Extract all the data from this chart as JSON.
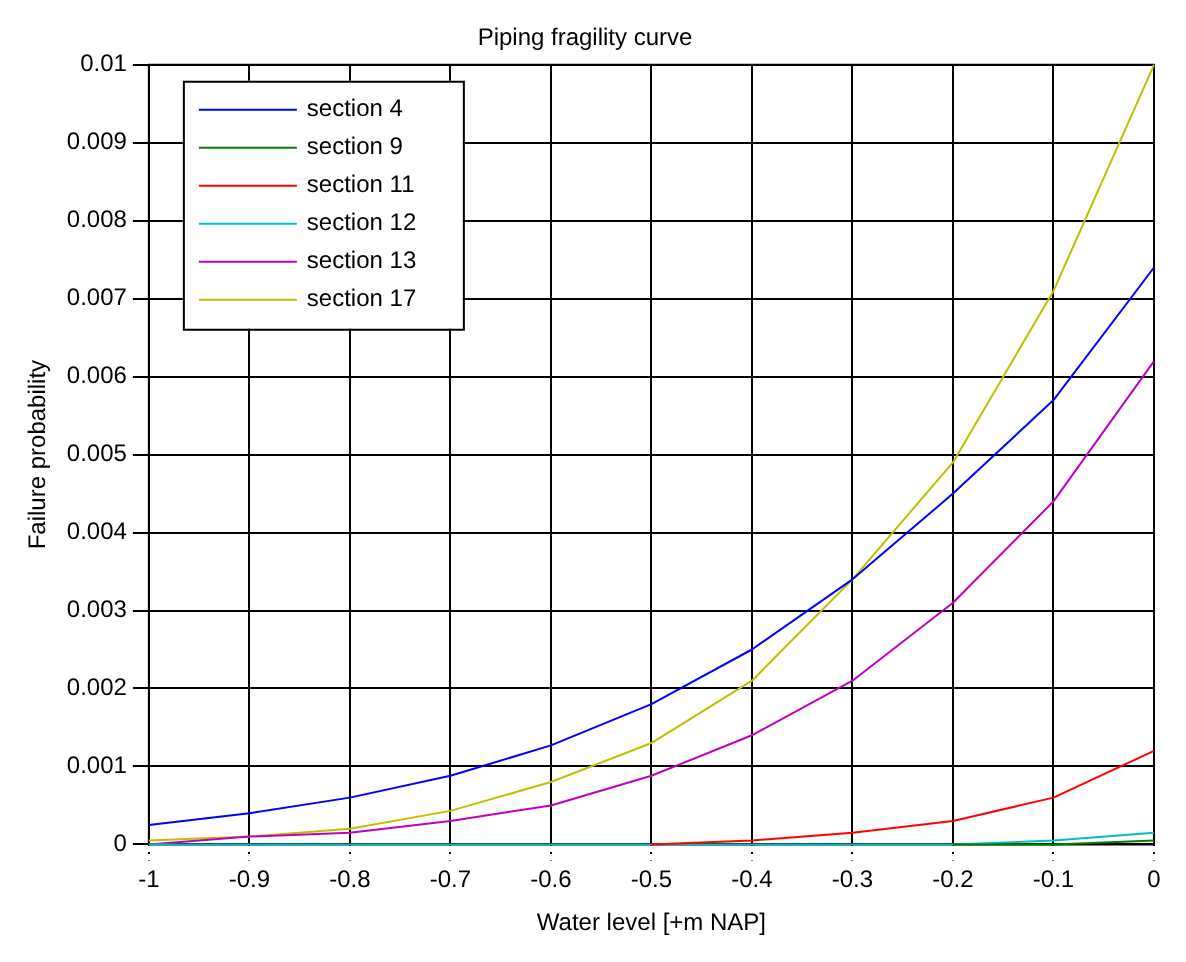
{
  "chart_data": {
    "type": "line",
    "title": "Piping fragility curve",
    "xlabel": "Water level [+m NAP]",
    "ylabel": "Failure probability",
    "x": [
      -1,
      -0.9,
      -0.8,
      -0.7,
      -0.6,
      -0.5,
      -0.4,
      -0.3,
      -0.2,
      -0.1,
      0
    ],
    "series": [
      {
        "name": "section 4",
        "color": "#0000ff",
        "values": [
          0.00025,
          0.0004,
          0.0006,
          0.00088,
          0.00127,
          0.0018,
          0.0025,
          0.0034,
          0.0045,
          0.0057,
          0.0074
        ]
      },
      {
        "name": "section 9",
        "color": "#008000",
        "values": [
          null,
          null,
          null,
          null,
          null,
          null,
          null,
          null,
          0,
          0,
          5e-05
        ]
      },
      {
        "name": "section 11",
        "color": "#ff0000",
        "values": [
          null,
          null,
          null,
          null,
          null,
          0,
          5e-05,
          0.00015,
          0.0003,
          0.0006,
          0.0012
        ]
      },
      {
        "name": "section 12",
        "color": "#00bfbf",
        "values": [
          0,
          0,
          0,
          0,
          0,
          0,
          0,
          0,
          0,
          5e-05,
          0.00015
        ]
      },
      {
        "name": "section 13",
        "color": "#bf00bf",
        "values": [
          0,
          0.0001,
          0.00015,
          0.0003,
          0.0005,
          0.00088,
          0.0014,
          0.0021,
          0.0031,
          0.0044,
          0.0062
        ]
      },
      {
        "name": "section 17",
        "color": "#bfbf00",
        "values": [
          5e-05,
          0.0001,
          0.0002,
          0.00043,
          0.0008,
          0.0013,
          0.0021,
          0.0034,
          0.0049,
          0.0071,
          0.01
        ]
      }
    ],
    "xlim": [
      -1,
      0
    ],
    "xticks": [
      -1,
      -0.9,
      -0.8,
      -0.7,
      -0.6,
      -0.5,
      -0.4,
      -0.3,
      -0.2,
      -0.1,
      0
    ],
    "ylim": [
      0,
      0.01
    ],
    "yticks": [
      0,
      0.001,
      0.002,
      0.003,
      0.004,
      0.005,
      0.006,
      0.007,
      0.008,
      0.009,
      0.01
    ],
    "grid": true,
    "legend": "top left",
    "marker": "none",
    "line_style": "solid"
  }
}
